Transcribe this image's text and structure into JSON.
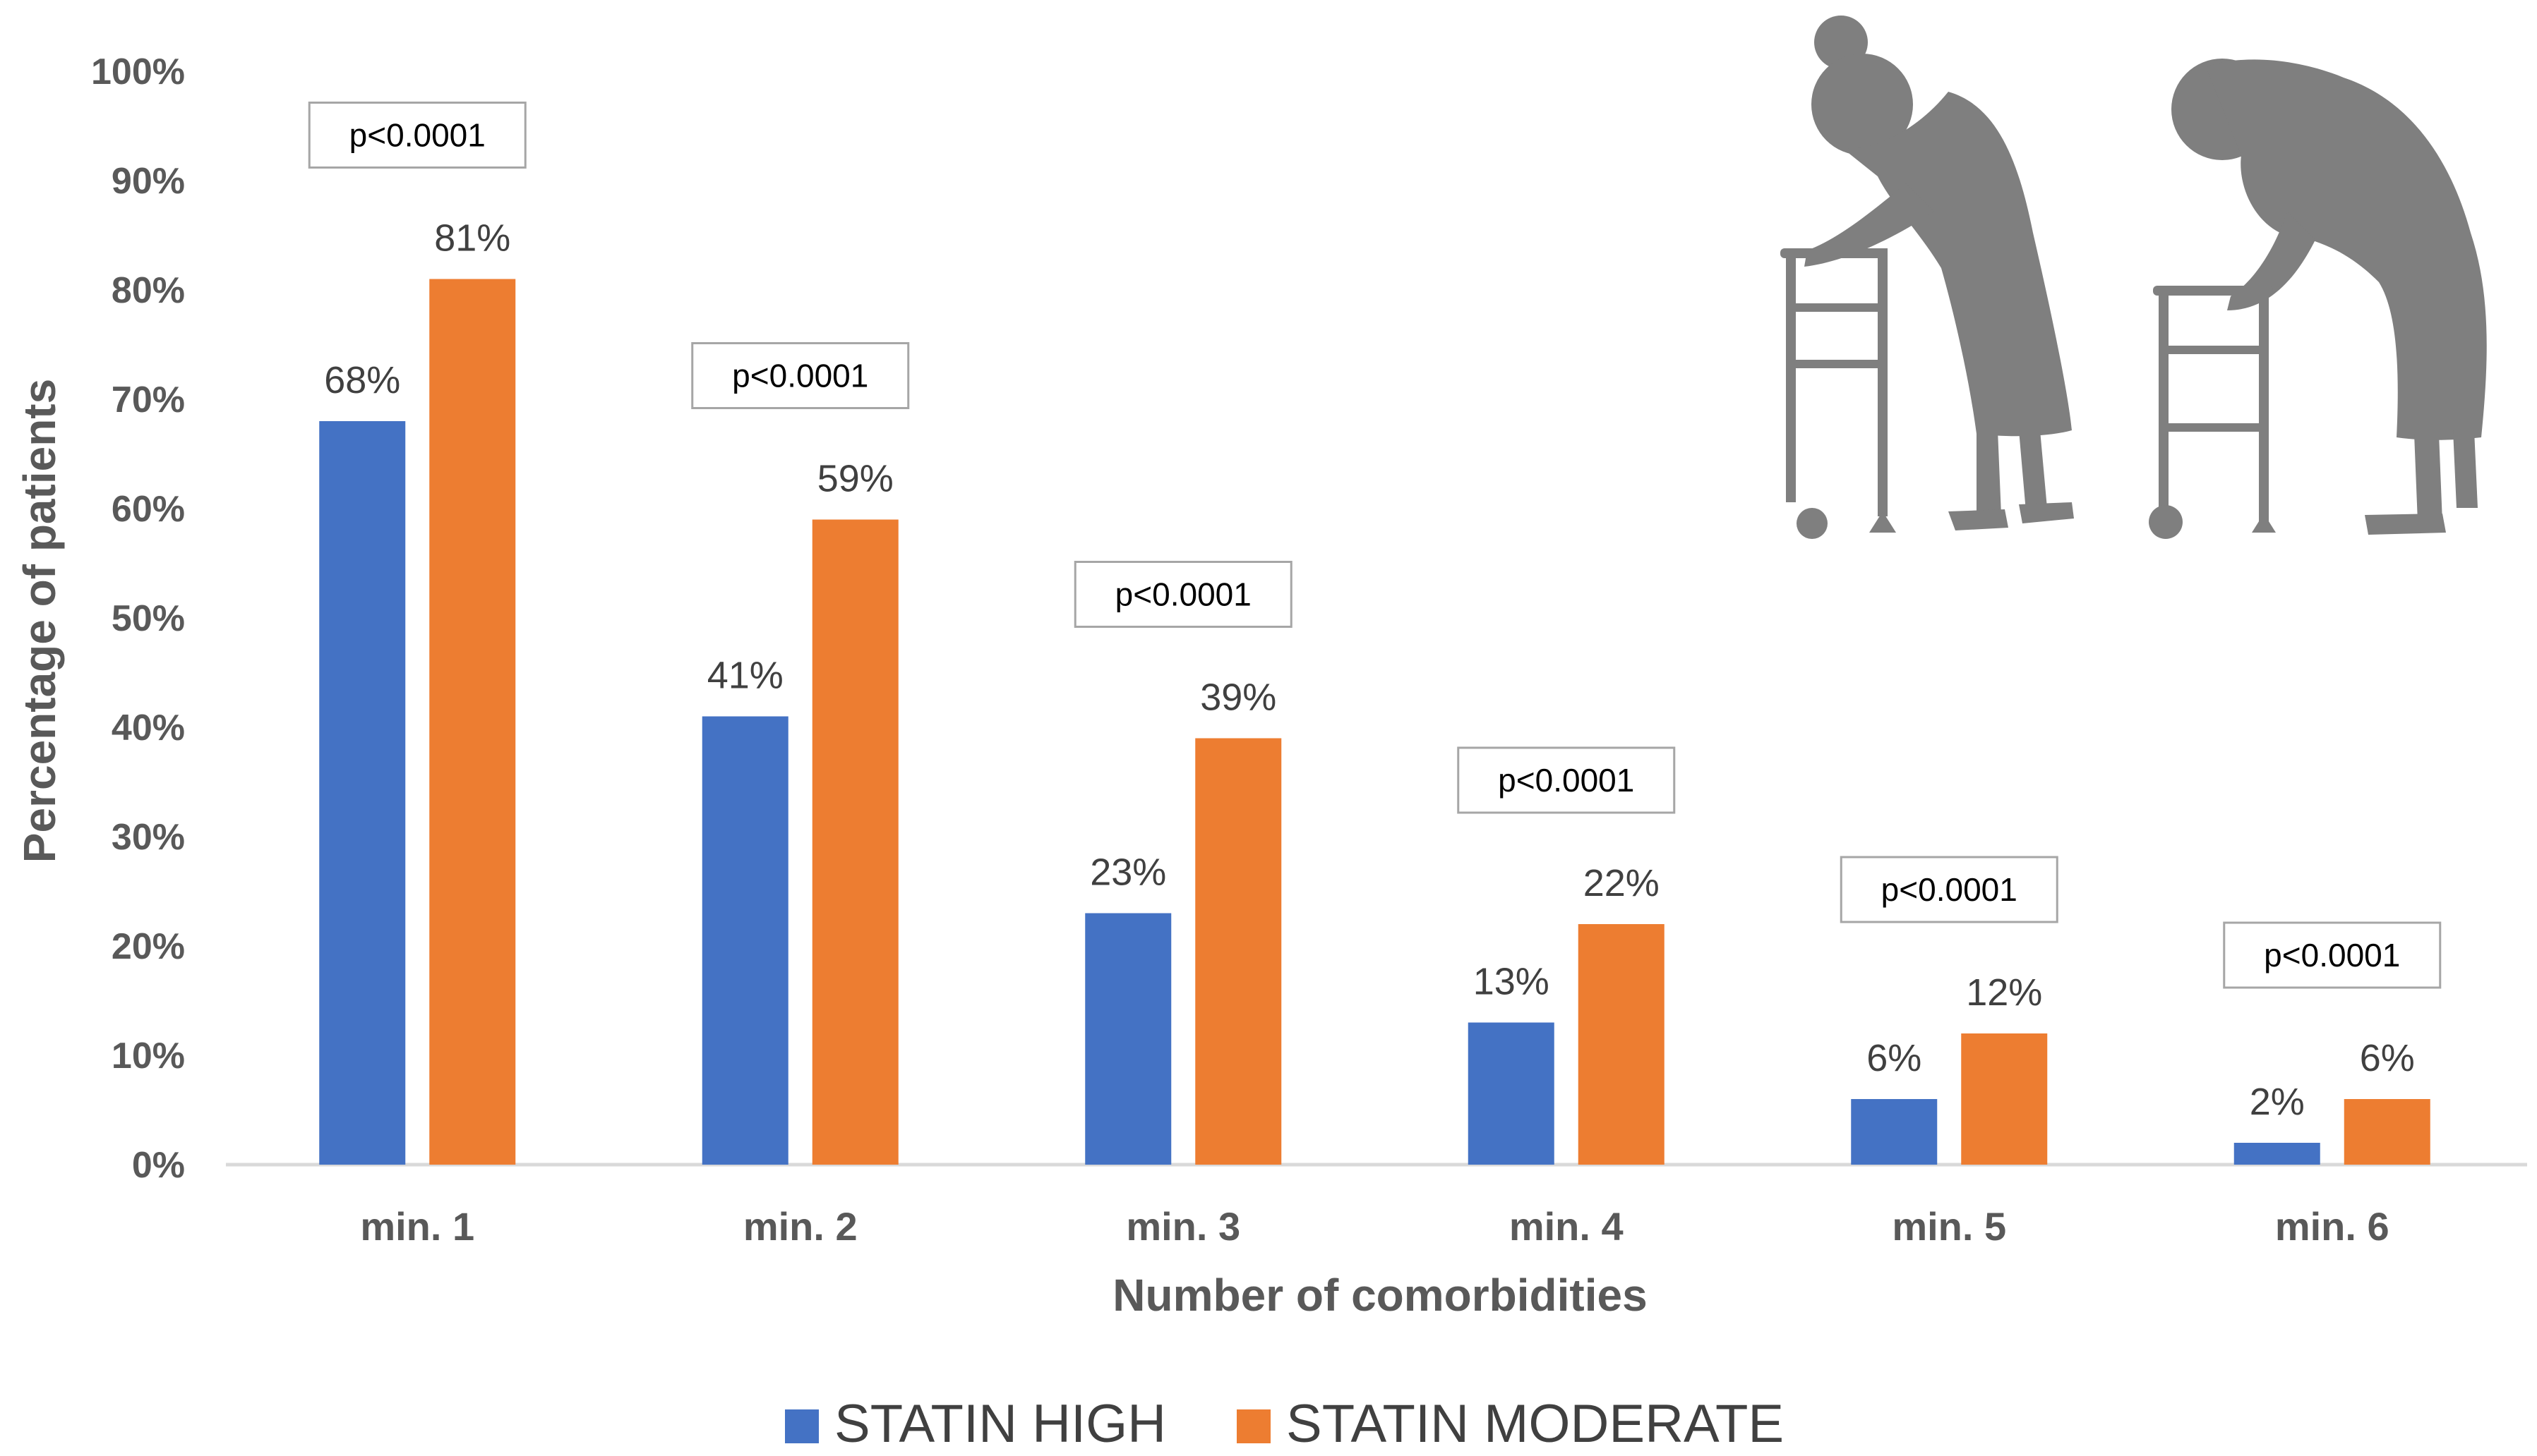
{
  "chart_data": {
    "type": "bar",
    "categories": [
      "min. 1",
      "min. 2",
      "min. 3",
      "min. 4",
      "min. 5",
      "min. 6"
    ],
    "series": [
      {
        "name": "STATIN HIGH",
        "color": "#4472C4",
        "values": [
          68,
          41,
          23,
          13,
          6,
          2
        ],
        "labels": [
          "68%",
          "41%",
          "23%",
          "13%",
          "6%",
          "2%"
        ]
      },
      {
        "name": "STATIN MODERATE",
        "color": "#ED7D31",
        "values": [
          81,
          59,
          39,
          22,
          12,
          6
        ],
        "labels": [
          "81%",
          "59%",
          "39%",
          "22%",
          "12%",
          "6%"
        ]
      }
    ],
    "annotations": [
      "p<0.0001",
      "p<0.0001",
      "p<0.0001",
      "p<0.0001",
      "p<0.0001",
      "p<0.0001"
    ],
    "yticks": [
      "0%",
      "10%",
      "20%",
      "30%",
      "40%",
      "50%",
      "60%",
      "70%",
      "80%",
      "90%",
      "100%"
    ],
    "ylim": [
      0,
      100
    ],
    "xlabel": "Number of comorbidities",
    "ylabel": "Percentage of patients",
    "grid": false,
    "legend_position": "bottom",
    "decoration": "elderly-figures-with-walkers-illustration"
  }
}
